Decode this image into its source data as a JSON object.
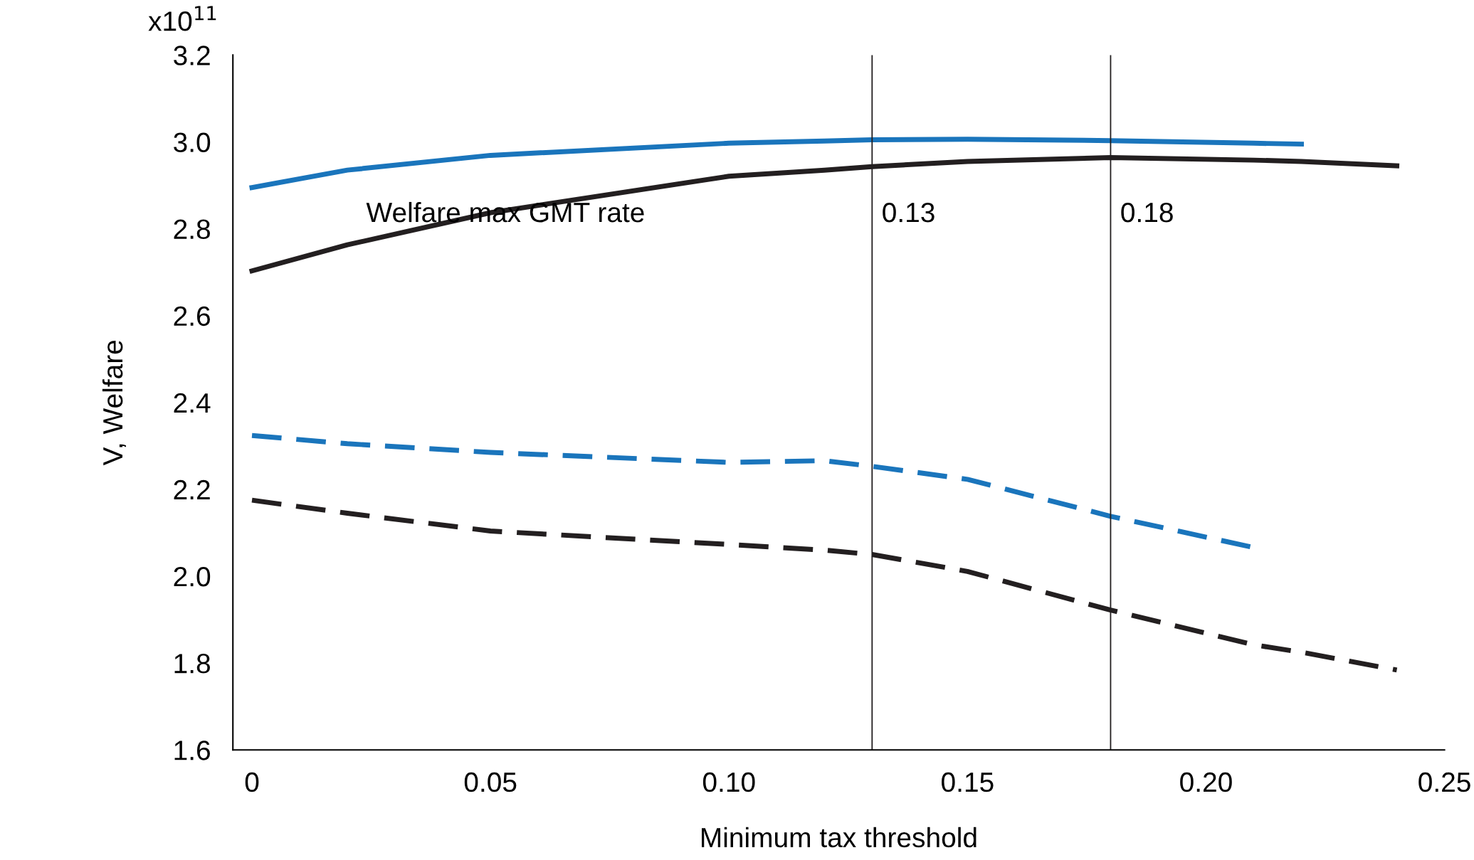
{
  "chart_data": {
    "type": "line",
    "xlabel": "Minimum tax threshold",
    "ylabel": "V, Welfare",
    "x": [
      0,
      0.02,
      0.05,
      0.1,
      0.12,
      0.13,
      0.15,
      0.18,
      0.21,
      0.22,
      0.24
    ],
    "series": [
      {
        "color": "#1a75bc",
        "line_style": "solid",
        "values": [
          2.895,
          2.935,
          2.969,
          2.997,
          3.002,
          3.005,
          3.006,
          3.003,
          2.997,
          2.995,
          null
        ]
      },
      {
        "color": "#231f20",
        "line_style": "solid",
        "values": [
          2.703,
          2.763,
          2.837,
          2.921,
          2.935,
          2.943,
          2.955,
          2.964,
          2.958,
          2.955,
          2.945
        ]
      },
      {
        "color": "#1a75bc",
        "line_style": "dashed",
        "values": [
          2.324,
          2.305,
          2.285,
          2.262,
          2.266,
          2.253,
          2.223,
          2.138,
          2.066,
          null,
          null
        ]
      },
      {
        "color": "#231f20",
        "line_style": "dashed",
        "values": [
          2.175,
          2.145,
          2.104,
          2.073,
          2.06,
          2.05,
          2.011,
          1.922,
          1.842,
          1.825,
          1.784
        ]
      }
    ],
    "xlim": [
      -0.004,
      0.25
    ],
    "ylim": [
      1.6,
      3.2
    ],
    "xticks": [
      0,
      0.05,
      {
        "value": 0.1,
        "label": "0.10"
      },
      0.15,
      {
        "value": 0.2,
        "label": "0.20"
      },
      0.25
    ],
    "yticks": [
      1.6,
      1.8,
      {
        "value": 2.0,
        "label": "2.0"
      },
      2.2,
      2.4,
      2.6,
      2.8,
      {
        "value": 3.0,
        "label": "3.0"
      },
      3.2
    ],
    "ref_lines": [
      {
        "axis": "x",
        "value": 0.13,
        "label": "0.13",
        "color": "#231f20"
      },
      {
        "axis": "x",
        "value": 0.18,
        "label": "0.18",
        "color": "#231f20"
      }
    ],
    "annotations": [
      "x10$^{11}$",
      "Welfare max GMT rate"
    ],
    "grid": false,
    "marker": "none"
  }
}
